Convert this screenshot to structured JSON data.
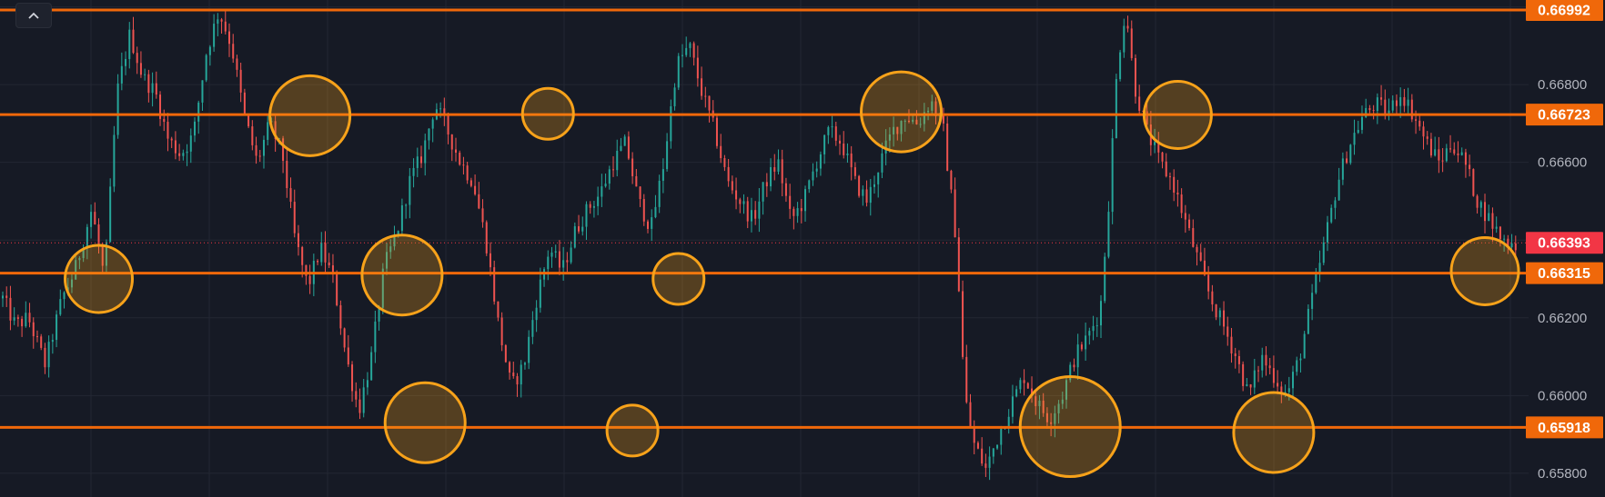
{
  "toolbar": {
    "collapse_icon": "chevron-up-icon"
  },
  "colors": {
    "background": "#161a25",
    "grid": "#232733",
    "level_line": "#f0680a",
    "level_label_bg": "#f0680a",
    "current_label_bg": "#f23645",
    "current_line": "#f23645",
    "candle_up": "#26a69a",
    "candle_down": "#ef5350",
    "circle_stroke": "#f7a21a",
    "circle_fill": "#f7a21a",
    "axis_text": "#b2b5be"
  },
  "chart_data": {
    "type": "candlestick",
    "symbol_price_axis": "right",
    "ylim": [
      0.6576,
      0.66992
    ],
    "y_ticks": [
      "0.66800",
      "0.66600",
      "0.66200",
      "0.66000",
      "0.65800"
    ],
    "y_tick_values": [
      0.668,
      0.666,
      0.662,
      0.66,
      0.658
    ],
    "current_price": {
      "label": "0.66393",
      "value": 0.66393
    },
    "levels": [
      {
        "label": "0.66992",
        "value": 0.66992
      },
      {
        "label": "0.66723",
        "value": 0.66723
      },
      {
        "label": "0.66315",
        "value": 0.66315
      },
      {
        "label": "0.65918",
        "value": 0.65918
      }
    ],
    "price_path": [
      [
        0,
        0.6625
      ],
      [
        3,
        0.6618
      ],
      [
        6,
        0.662
      ],
      [
        10,
        0.6608
      ],
      [
        14,
        0.6625
      ],
      [
        17,
        0.6632
      ],
      [
        21,
        0.6648
      ],
      [
        24,
        0.663
      ],
      [
        27,
        0.6678
      ],
      [
        30,
        0.6693
      ],
      [
        33,
        0.6682
      ],
      [
        36,
        0.6678
      ],
      [
        39,
        0.6666
      ],
      [
        42,
        0.6662
      ],
      [
        45,
        0.6667
      ],
      [
        48,
        0.6688
      ],
      [
        51,
        0.6699
      ],
      [
        54,
        0.669
      ],
      [
        57,
        0.6672
      ],
      [
        60,
        0.666
      ],
      [
        63,
        0.667
      ],
      [
        66,
        0.6662
      ],
      [
        69,
        0.664
      ],
      [
        72,
        0.6628
      ],
      [
        75,
        0.6638
      ],
      [
        78,
        0.663
      ],
      [
        81,
        0.661
      ],
      [
        84,
        0.6596
      ],
      [
        87,
        0.661
      ],
      [
        90,
        0.6633
      ],
      [
        93,
        0.6642
      ],
      [
        96,
        0.6655
      ],
      [
        99,
        0.6662
      ],
      [
        102,
        0.6675
      ],
      [
        105,
        0.6668
      ],
      [
        108,
        0.666
      ],
      [
        111,
        0.6655
      ],
      [
        114,
        0.664
      ],
      [
        117,
        0.6618
      ],
      [
        120,
        0.6602
      ],
      [
        123,
        0.6608
      ],
      [
        126,
        0.6625
      ],
      [
        129,
        0.6638
      ],
      [
        132,
        0.6632
      ],
      [
        135,
        0.6642
      ],
      [
        138,
        0.6648
      ],
      [
        141,
        0.6652
      ],
      [
        144,
        0.666
      ],
      [
        147,
        0.6665
      ],
      [
        150,
        0.665
      ],
      [
        153,
        0.6643
      ],
      [
        156,
        0.666
      ],
      [
        159,
        0.6685
      ],
      [
        162,
        0.669
      ],
      [
        165,
        0.6678
      ],
      [
        168,
        0.6668
      ],
      [
        171,
        0.6655
      ],
      [
        174,
        0.665
      ],
      [
        177,
        0.6645
      ],
      [
        180,
        0.6655
      ],
      [
        183,
        0.666
      ],
      [
        186,
        0.6645
      ],
      [
        189,
        0.665
      ],
      [
        192,
        0.666
      ],
      [
        195,
        0.6668
      ],
      [
        198,
        0.6665
      ],
      [
        201,
        0.6655
      ],
      [
        204,
        0.665
      ],
      [
        207,
        0.666
      ],
      [
        210,
        0.6668
      ],
      [
        213,
        0.6672
      ],
      [
        216,
        0.667
      ],
      [
        219,
        0.6676
      ],
      [
        222,
        0.6668
      ],
      [
        225,
        0.664
      ],
      [
        227,
        0.66
      ],
      [
        229,
        0.6588
      ],
      [
        232,
        0.6581
      ],
      [
        235,
        0.659
      ],
      [
        238,
        0.6598
      ],
      [
        241,
        0.6605
      ],
      [
        244,
        0.6598
      ],
      [
        247,
        0.6594
      ],
      [
        250,
        0.66
      ],
      [
        253,
        0.661
      ],
      [
        256,
        0.6615
      ],
      [
        259,
        0.6622
      ],
      [
        261,
        0.665
      ],
      [
        263,
        0.6685
      ],
      [
        265,
        0.67
      ],
      [
        267,
        0.668
      ],
      [
        270,
        0.6668
      ],
      [
        273,
        0.666
      ],
      [
        276,
        0.6655
      ],
      [
        279,
        0.6645
      ],
      [
        282,
        0.6635
      ],
      [
        285,
        0.6625
      ],
      [
        288,
        0.6618
      ],
      [
        291,
        0.661
      ],
      [
        294,
        0.66
      ],
      [
        297,
        0.661
      ],
      [
        300,
        0.6605
      ],
      [
        303,
        0.66
      ],
      [
        306,
        0.661
      ],
      [
        309,
        0.6625
      ],
      [
        312,
        0.664
      ],
      [
        315,
        0.6655
      ],
      [
        318,
        0.6665
      ],
      [
        321,
        0.6672
      ],
      [
        324,
        0.6675
      ],
      [
        327,
        0.6673
      ],
      [
        330,
        0.6678
      ],
      [
        333,
        0.6672
      ],
      [
        336,
        0.6665
      ],
      [
        339,
        0.666
      ],
      [
        342,
        0.6665
      ],
      [
        345,
        0.666
      ],
      [
        348,
        0.665
      ],
      [
        351,
        0.6645
      ],
      [
        354,
        0.664
      ],
      [
        357,
        0.6639
      ]
    ],
    "highlights": [
      {
        "index": 25,
        "value": 0.663,
        "size": "medium"
      },
      {
        "index": 80,
        "value": 0.6672,
        "size": "large"
      },
      {
        "index": 104,
        "value": 0.6631,
        "size": "large"
      },
      {
        "index": 110,
        "value": 0.6593,
        "size": "large"
      },
      {
        "index": 142,
        "value": 0.66725,
        "size": "small"
      },
      {
        "index": 164,
        "value": 0.6591,
        "size": "small"
      },
      {
        "index": 176,
        "value": 0.663,
        "size": "small"
      },
      {
        "index": 234,
        "value": 0.6673,
        "size": "large"
      },
      {
        "index": 278,
        "value": 0.6592,
        "size": "xlarge"
      },
      {
        "index": 306,
        "value": 0.66722,
        "size": "medium"
      },
      {
        "index": 331,
        "value": 0.65905,
        "size": "large"
      },
      {
        "index": 386,
        "value": 0.6632,
        "size": "medium"
      }
    ]
  }
}
